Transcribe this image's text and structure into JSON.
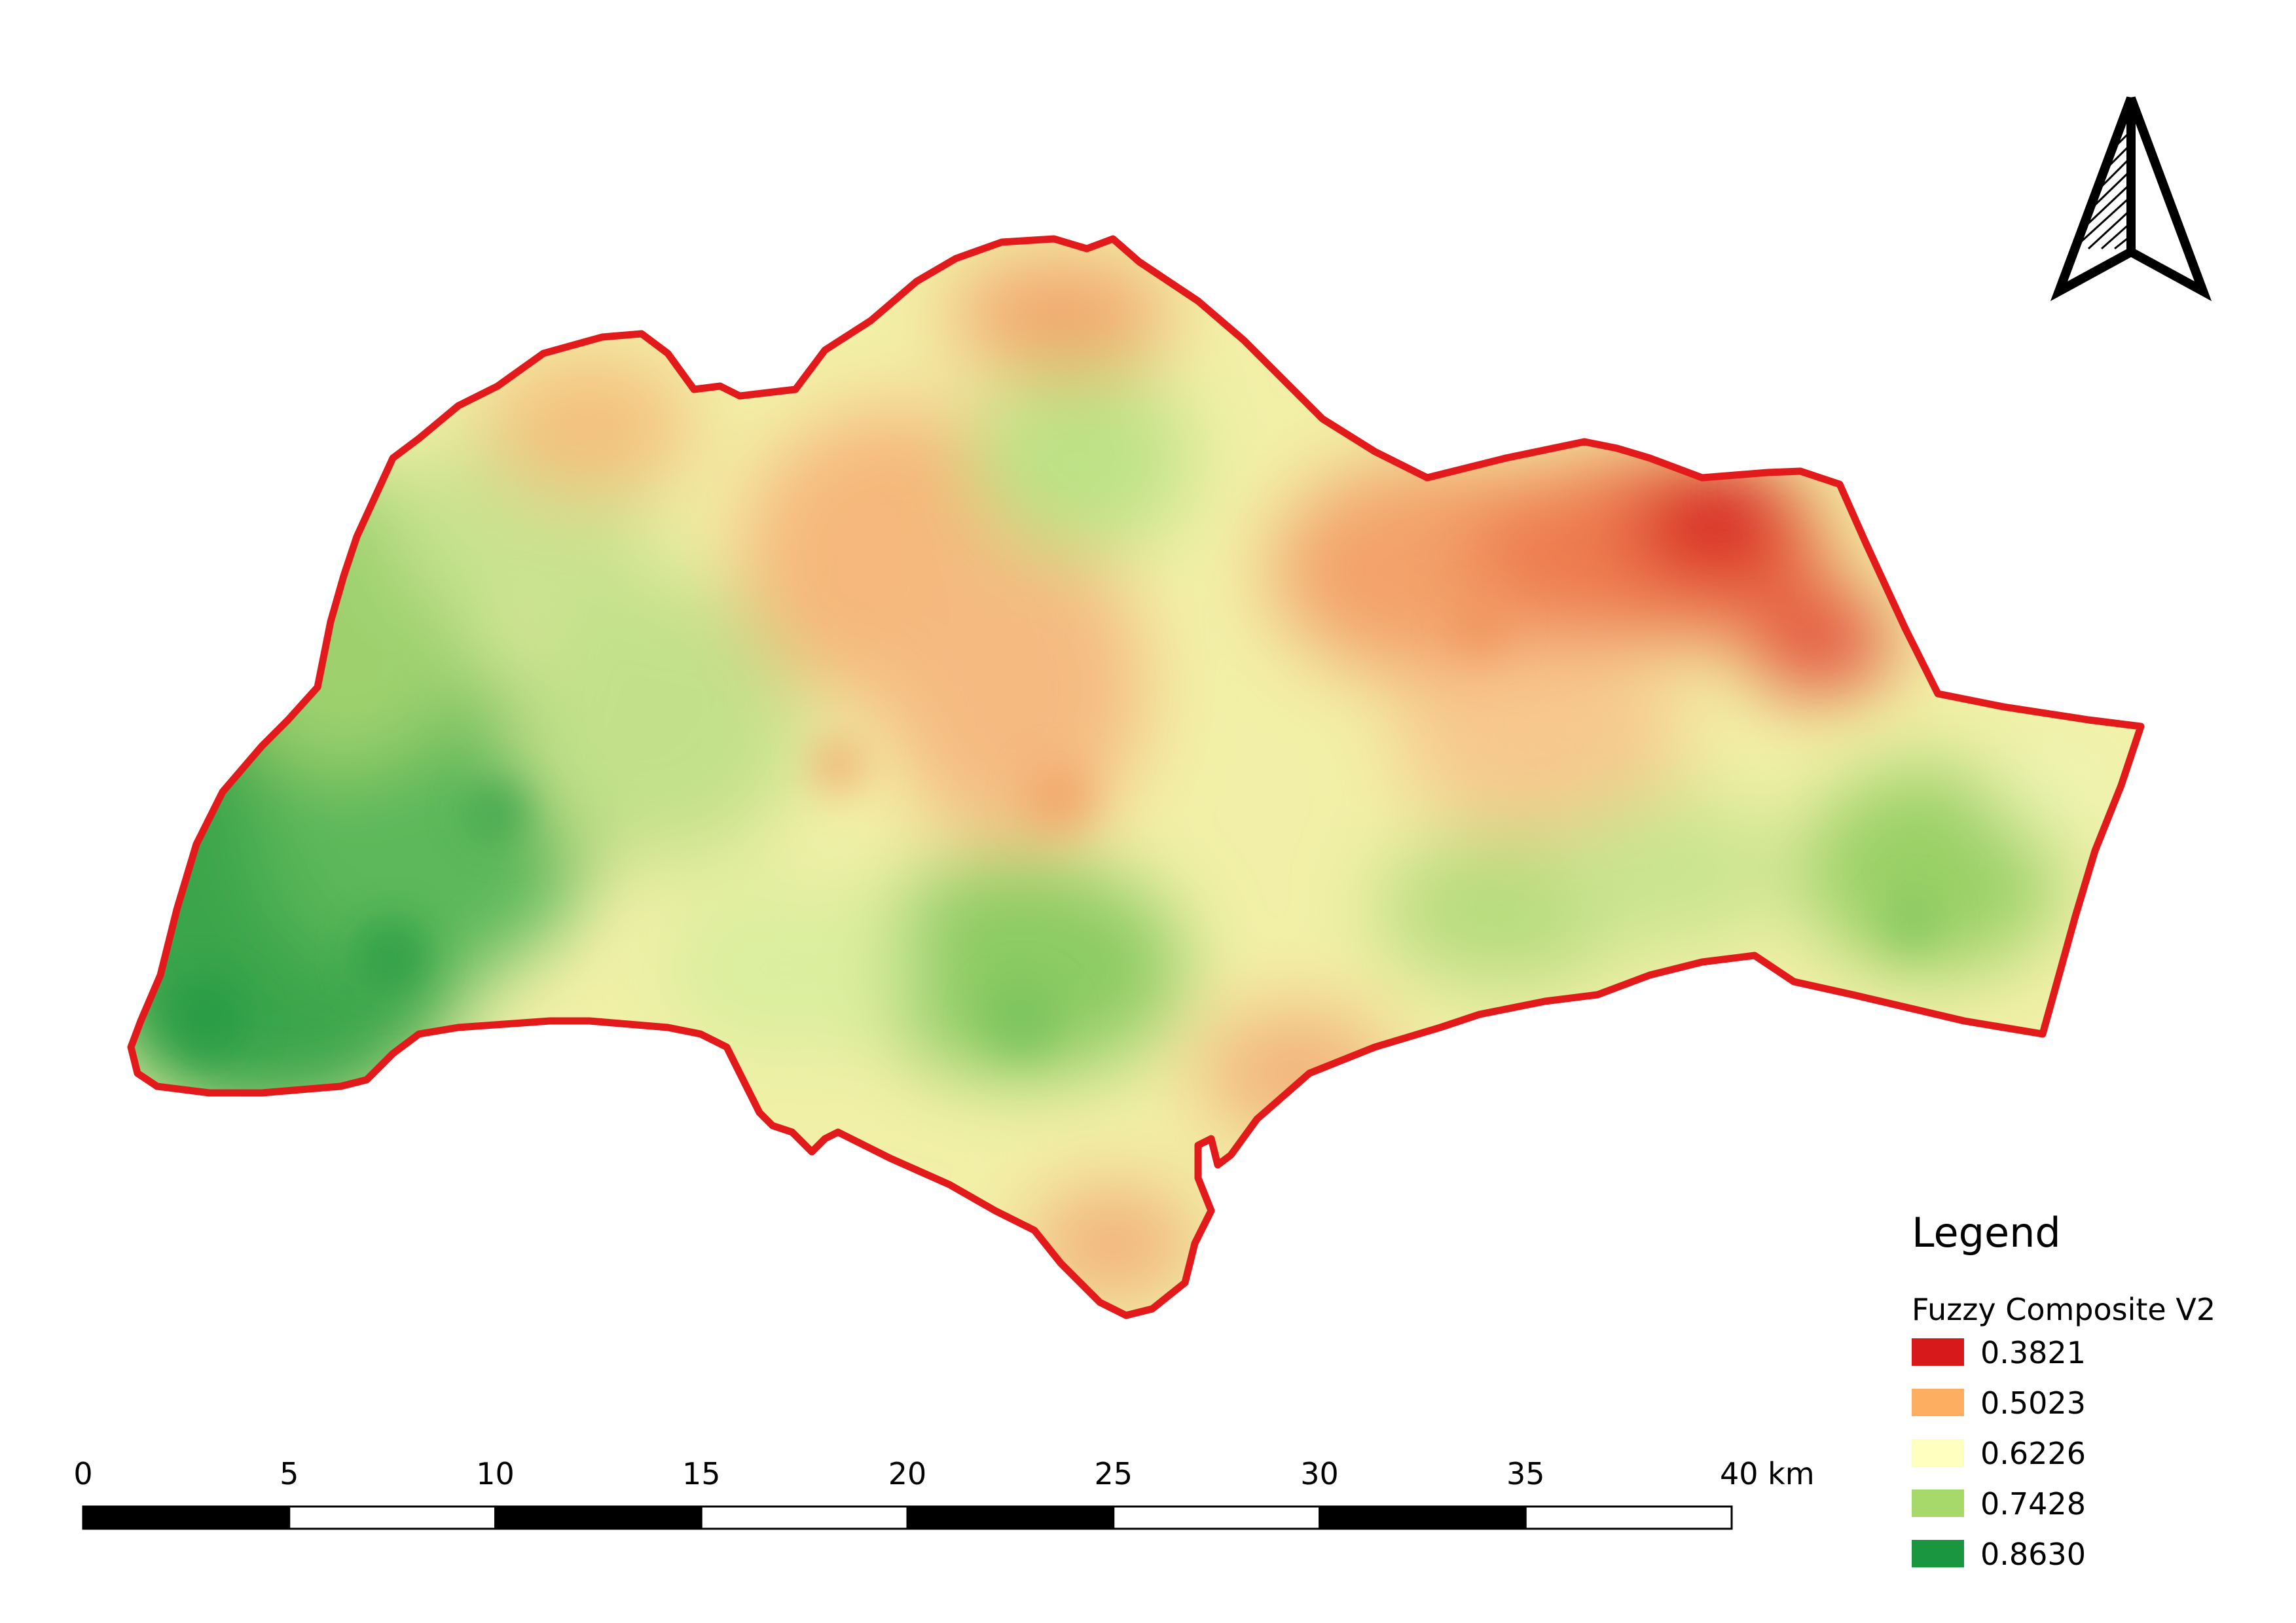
{
  "legend": {
    "title": "Legend",
    "layer_name": "Fuzzy Composite V2",
    "classes": [
      {
        "label": "0.3821",
        "color": "#d7191c"
      },
      {
        "label": "0.5023",
        "color": "#fdae61"
      },
      {
        "label": "0.6226",
        "color": "#ffffc0"
      },
      {
        "label": "0.7428",
        "color": "#a6d96a"
      },
      {
        "label": "0.8630",
        "color": "#1a9641"
      }
    ]
  },
  "scale_bar": {
    "ticks": [
      "0",
      "5",
      "10",
      "15",
      "20",
      "25",
      "30",
      "35",
      "40 km"
    ]
  },
  "north_arrow": {
    "icon": "north-arrow-icon"
  },
  "boundary_color": "#e31a1c"
}
